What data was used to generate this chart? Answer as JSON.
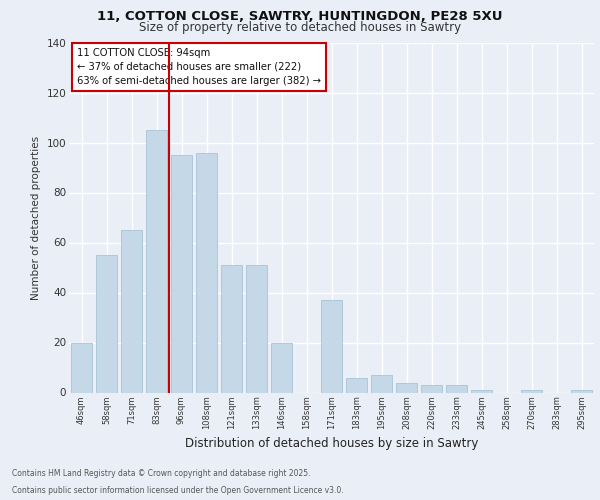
{
  "title_line1": "11, COTTON CLOSE, SAWTRY, HUNTINGDON, PE28 5XU",
  "title_line2": "Size of property relative to detached houses in Sawtry",
  "xlabel": "Distribution of detached houses by size in Sawtry",
  "ylabel": "Number of detached properties",
  "categories": [
    "46sqm",
    "58sqm",
    "71sqm",
    "83sqm",
    "96sqm",
    "108sqm",
    "121sqm",
    "133sqm",
    "146sqm",
    "158sqm",
    "171sqm",
    "183sqm",
    "195sqm",
    "208sqm",
    "220sqm",
    "233sqm",
    "245sqm",
    "258sqm",
    "270sqm",
    "283sqm",
    "295sqm"
  ],
  "values": [
    20,
    55,
    65,
    105,
    95,
    96,
    51,
    51,
    20,
    0,
    37,
    6,
    7,
    4,
    3,
    3,
    1,
    0,
    1,
    0,
    1
  ],
  "bar_color": "#c5d8e8",
  "bar_edge_color": "#a8c4d8",
  "vline_color": "#cc0000",
  "vline_x": 3.5,
  "annotation_text": "11 COTTON CLOSE: 94sqm\n← 37% of detached houses are smaller (222)\n63% of semi-detached houses are larger (382) →",
  "annotation_box_color": "#ffffff",
  "annotation_box_edge": "#cc0000",
  "ylim": [
    0,
    140
  ],
  "yticks": [
    0,
    20,
    40,
    60,
    80,
    100,
    120,
    140
  ],
  "footer_line1": "Contains HM Land Registry data © Crown copyright and database right 2025.",
  "footer_line2": "Contains public sector information licensed under the Open Government Licence v3.0.",
  "bg_color": "#eaeff7",
  "plot_bg_color": "#eaeff7",
  "grid_color": "#ffffff"
}
